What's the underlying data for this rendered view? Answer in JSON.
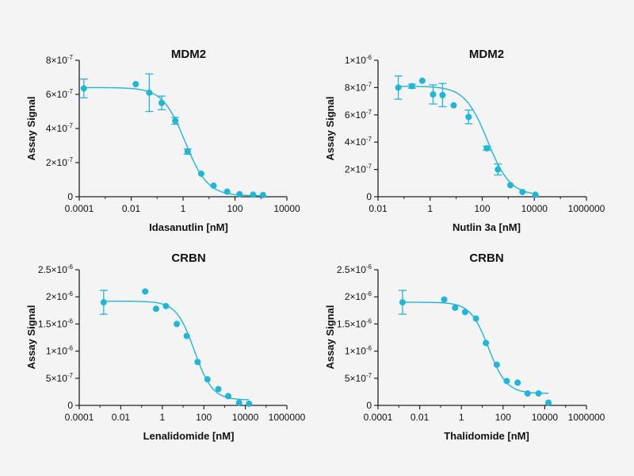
{
  "colors": {
    "series": "#1fb6d8",
    "axis": "#222222",
    "background": "#f4f4f4"
  },
  "chart_data": [
    {
      "type": "scatter",
      "title": "MDM2",
      "xlabel": "Idasanutlin [nM]",
      "ylabel": "Assay Signal",
      "xscale": "log",
      "xlim": [
        0.0001,
        10000
      ],
      "xticks": [
        0.0001,
        0.01,
        1,
        100,
        10000
      ],
      "xtick_labels": [
        "0.0001",
        "0.01",
        "1",
        "100",
        "10000"
      ],
      "ylim": [
        0,
        8e-07
      ],
      "yticks": [
        0,
        2e-07,
        4e-07,
        6e-07,
        8e-07
      ],
      "ytick_labels": [
        {
          "mant": "0",
          "exp": ""
        },
        {
          "mant": "2×10",
          "exp": "-7"
        },
        {
          "mant": "4×10",
          "exp": "-7"
        },
        {
          "mant": "6×10",
          "exp": "-7"
        },
        {
          "mant": "8×10",
          "exp": "-7"
        }
      ],
      "points": [
        {
          "x": 0.00015,
          "y": 6.35e-07,
          "err": 5.5e-08
        },
        {
          "x": 0.015,
          "y": 6.6e-07,
          "err": 0
        },
        {
          "x": 0.05,
          "y": 6.1e-07,
          "err": 1.1e-07
        },
        {
          "x": 0.15,
          "y": 5.5e-07,
          "err": 4e-08
        },
        {
          "x": 0.5,
          "y": 4.45e-07,
          "err": 2e-08
        },
        {
          "x": 1.5,
          "y": 2.65e-07,
          "err": 1.5e-08
        },
        {
          "x": 5,
          "y": 1.35e-07,
          "err": 0
        },
        {
          "x": 15,
          "y": 6.5e-08,
          "err": 0
        },
        {
          "x": 50,
          "y": 3e-08,
          "err": 0
        },
        {
          "x": 150,
          "y": 1.5e-08,
          "err": 0
        },
        {
          "x": 500,
          "y": 1.2e-08,
          "err": 0
        },
        {
          "x": 1200,
          "y": 1e-08,
          "err": 0
        }
      ],
      "fit": {
        "top": 6.4e-07,
        "bottom": 5e-09,
        "ec50": 1.2,
        "hill": 1.0,
        "xmax": 1200
      }
    },
    {
      "type": "scatter",
      "title": "MDM2",
      "xlabel": "Nutlin 3a [nM]",
      "ylabel": "Assay Signal",
      "xscale": "log",
      "xlim": [
        0.01,
        1000000
      ],
      "xticks": [
        0.01,
        1,
        100,
        10000,
        1000000
      ],
      "xtick_labels": [
        "0.01",
        "1",
        "100",
        "10000",
        "1000000"
      ],
      "ylim": [
        0,
        1e-06
      ],
      "yticks": [
        0,
        2e-07,
        4e-07,
        6e-07,
        8e-07,
        1e-06
      ],
      "ytick_labels": [
        {
          "mant": "0",
          "exp": ""
        },
        {
          "mant": "2×10",
          "exp": "-7"
        },
        {
          "mant": "4×10",
          "exp": "-7"
        },
        {
          "mant": "6×10",
          "exp": "-7"
        },
        {
          "mant": "8×10",
          "exp": "-7"
        },
        {
          "mant": "1×10",
          "exp": "-6"
        }
      ],
      "points": [
        {
          "x": 0.06,
          "y": 8e-07,
          "err": 8.5e-08
        },
        {
          "x": 0.2,
          "y": 8.1e-07,
          "err": 1.5e-08
        },
        {
          "x": 0.5,
          "y": 8.5e-07,
          "err": 0
        },
        {
          "x": 1.3,
          "y": 7.5e-07,
          "err": 7e-08
        },
        {
          "x": 3,
          "y": 7.45e-07,
          "err": 8.5e-08
        },
        {
          "x": 8,
          "y": 6.7e-07,
          "err": 0
        },
        {
          "x": 30,
          "y": 5.85e-07,
          "err": 5e-08
        },
        {
          "x": 150,
          "y": 3.55e-07,
          "err": 1.5e-08
        },
        {
          "x": 400,
          "y": 2e-07,
          "err": 4e-08
        },
        {
          "x": 1200,
          "y": 8.5e-08,
          "err": 0
        },
        {
          "x": 3500,
          "y": 3.5e-08,
          "err": 0
        },
        {
          "x": 11000,
          "y": 1.5e-08,
          "err": 0
        }
      ],
      "fit": {
        "top": 8.1e-07,
        "bottom": 1e-08,
        "ec50": 160,
        "hill": 1.0,
        "xmax": 11000
      }
    },
    {
      "type": "scatter",
      "title": "CRBN",
      "xlabel": "Lenalidomide [nM]",
      "ylabel": "Assay Signal",
      "xscale": "log",
      "xlim": [
        0.0001,
        1000000
      ],
      "xticks": [
        0.0001,
        0.01,
        1,
        100,
        10000,
        1000000
      ],
      "xtick_labels": [
        "0.0001",
        "0.01",
        "1",
        "100",
        "10000",
        "1000000"
      ],
      "ylim": [
        0,
        2.5e-06
      ],
      "yticks": [
        0,
        5e-07,
        1e-06,
        1.5e-06,
        2e-06,
        2.5e-06
      ],
      "ytick_labels": [
        {
          "mant": "0",
          "exp": ""
        },
        {
          "mant": "5×10",
          "exp": "-7"
        },
        {
          "mant": "1×10",
          "exp": "-6"
        },
        {
          "mant": "1.5×10",
          "exp": "-6"
        },
        {
          "mant": "2×10",
          "exp": "-6"
        },
        {
          "mant": "2.5×10",
          "exp": "-6"
        }
      ],
      "points": [
        {
          "x": 0.0015,
          "y": 1.9e-06,
          "err": 2.2e-07
        },
        {
          "x": 0.15,
          "y": 2.1e-06,
          "err": 0
        },
        {
          "x": 0.5,
          "y": 1.78e-06,
          "err": 0
        },
        {
          "x": 1.5,
          "y": 1.83e-06,
          "err": 0
        },
        {
          "x": 5,
          "y": 1.5e-06,
          "err": 0
        },
        {
          "x": 15,
          "y": 1.28e-06,
          "err": 0
        },
        {
          "x": 50,
          "y": 8e-07,
          "err": 0
        },
        {
          "x": 150,
          "y": 4.8e-07,
          "err": 0
        },
        {
          "x": 500,
          "y": 3e-07,
          "err": 0
        },
        {
          "x": 1500,
          "y": 1.7e-07,
          "err": 0
        },
        {
          "x": 5000,
          "y": 5e-08,
          "err": 0
        },
        {
          "x": 15000,
          "y": 3e-08,
          "err": 0
        }
      ],
      "fit": {
        "top": 1.92e-06,
        "bottom": 1e-07,
        "ec50": 35,
        "hill": 1.0,
        "xmax": 15000
      }
    },
    {
      "type": "scatter",
      "title": "CRBN",
      "xlabel": "Thalidomide [nM]",
      "ylabel": "Assay Signal",
      "xscale": "log",
      "xlim": [
        0.0001,
        1000000
      ],
      "xticks": [
        0.0001,
        0.01,
        1,
        100,
        10000,
        1000000
      ],
      "xtick_labels": [
        "0.0001",
        "0.01",
        "1",
        "100",
        "10000",
        "1000000"
      ],
      "ylim": [
        0,
        2.5e-06
      ],
      "yticks": [
        0,
        5e-07,
        1e-06,
        1.5e-06,
        2e-06,
        2.5e-06
      ],
      "ytick_labels": [
        {
          "mant": "0",
          "exp": ""
        },
        {
          "mant": "5×10",
          "exp": "-7"
        },
        {
          "mant": "1×10",
          "exp": "-6"
        },
        {
          "mant": "1.5×10",
          "exp": "-6"
        },
        {
          "mant": "2×10",
          "exp": "-6"
        },
        {
          "mant": "2.5×10",
          "exp": "-6"
        }
      ],
      "points": [
        {
          "x": 0.0015,
          "y": 1.9e-06,
          "err": 2.2e-07
        },
        {
          "x": 0.15,
          "y": 1.95e-06,
          "err": 0
        },
        {
          "x": 0.5,
          "y": 1.8e-06,
          "err": 0
        },
        {
          "x": 1.5,
          "y": 1.72e-06,
          "err": 0
        },
        {
          "x": 5,
          "y": 1.6e-06,
          "err": 0
        },
        {
          "x": 15,
          "y": 1.15e-06,
          "err": 0
        },
        {
          "x": 50,
          "y": 7.5e-07,
          "err": 0
        },
        {
          "x": 150,
          "y": 4.5e-07,
          "err": 0
        },
        {
          "x": 500,
          "y": 4.2e-07,
          "err": 0
        },
        {
          "x": 1500,
          "y": 2.2e-07,
          "err": 0
        },
        {
          "x": 5000,
          "y": 2.2e-07,
          "err": 0
        },
        {
          "x": 15000,
          "y": 5e-08,
          "err": 0
        }
      ],
      "fit": {
        "top": 1.9e-06,
        "bottom": 2.2e-07,
        "ec50": 20,
        "hill": 1.0,
        "xmax": 15000
      }
    }
  ]
}
